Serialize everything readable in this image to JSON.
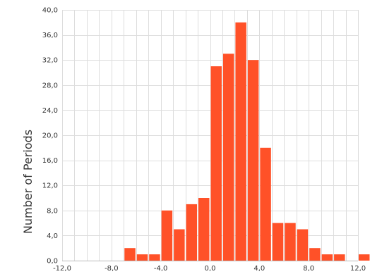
{
  "chart_data": {
    "type": "bar",
    "title": "",
    "xlabel": "",
    "ylabel": "Number of Periods",
    "xlim": [
      -12,
      12
    ],
    "ylim": [
      0,
      40
    ],
    "x_ticks": [
      -12,
      -8,
      -4,
      0,
      4,
      8,
      12
    ],
    "x_tick_labels": [
      "-12,0",
      "-8,0",
      "-4,0",
      "0,0",
      "4,0",
      "8,0",
      "12,0"
    ],
    "y_ticks": [
      0,
      4,
      8,
      12,
      16,
      20,
      24,
      28,
      32,
      36,
      40
    ],
    "y_tick_labels": [
      "0,0",
      "4,0",
      "8,0",
      "12,0",
      "16,0",
      "20,0",
      "24,0",
      "28,0",
      "32,0",
      "36,0",
      "40,0"
    ],
    "grid": true,
    "bin_width": 1,
    "bins": [
      {
        "x_start": -12,
        "value": 0
      },
      {
        "x_start": -11,
        "value": 0
      },
      {
        "x_start": -10,
        "value": 0
      },
      {
        "x_start": -9,
        "value": 0
      },
      {
        "x_start": -8,
        "value": 0
      },
      {
        "x_start": -7,
        "value": 2
      },
      {
        "x_start": -6,
        "value": 1
      },
      {
        "x_start": -5,
        "value": 1
      },
      {
        "x_start": -4,
        "value": 8
      },
      {
        "x_start": -3,
        "value": 5
      },
      {
        "x_start": -2,
        "value": 9
      },
      {
        "x_start": -1,
        "value": 10
      },
      {
        "x_start": 0,
        "value": 31
      },
      {
        "x_start": 1,
        "value": 33
      },
      {
        "x_start": 2,
        "value": 38
      },
      {
        "x_start": 3,
        "value": 32
      },
      {
        "x_start": 4,
        "value": 18
      },
      {
        "x_start": 5,
        "value": 6
      },
      {
        "x_start": 6,
        "value": 6
      },
      {
        "x_start": 7,
        "value": 5
      },
      {
        "x_start": 8,
        "value": 2
      },
      {
        "x_start": 9,
        "value": 1
      },
      {
        "x_start": 10,
        "value": 1
      },
      {
        "x_start": 11,
        "value": 0
      },
      {
        "x_start": 12,
        "value": 1
      }
    ],
    "colors": {
      "bar": "#FF5128",
      "grid": "#DDDDDD",
      "axis": "#BBBBBB",
      "text": "#333333"
    }
  }
}
